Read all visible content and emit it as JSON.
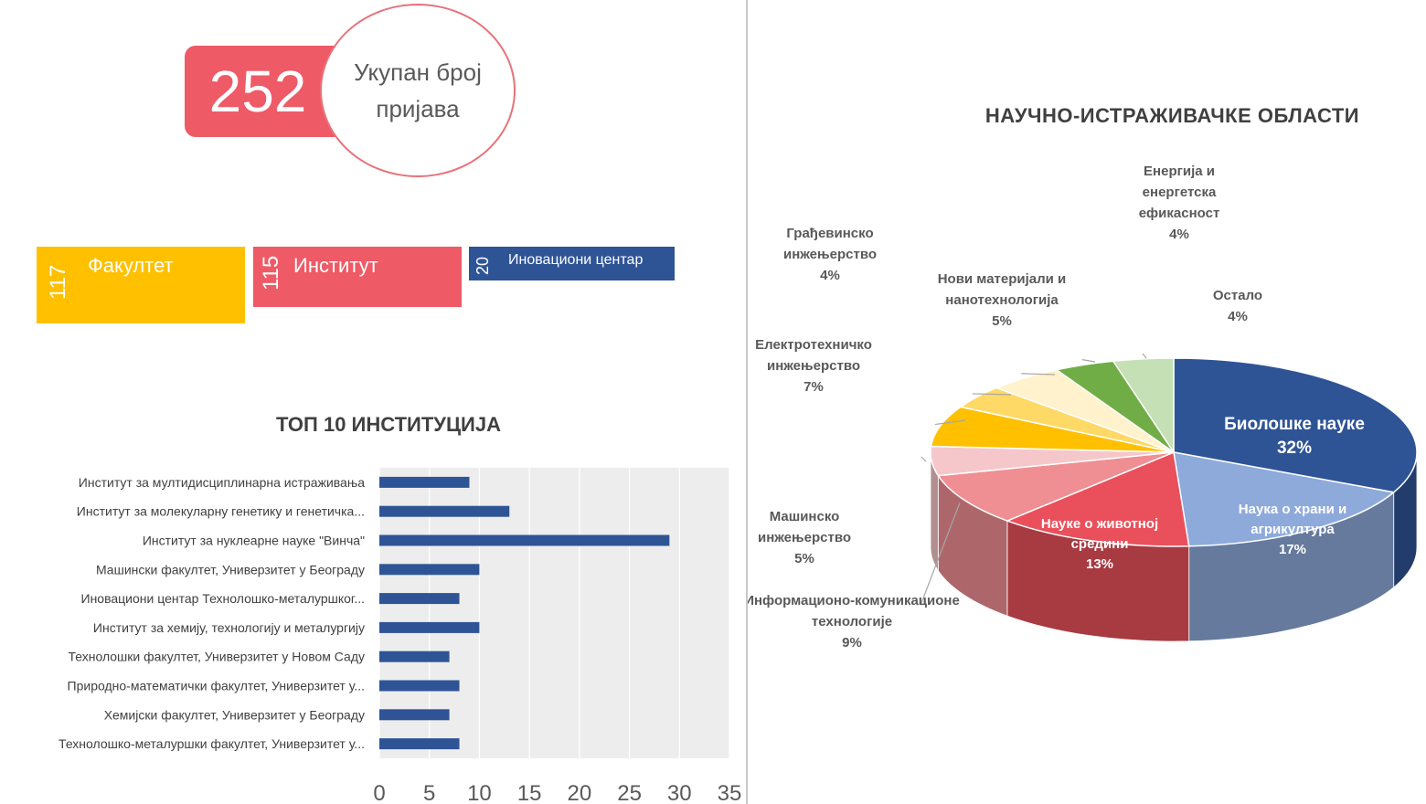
{
  "summary": {
    "total_value": "252",
    "total_label": "Укупан број пријава"
  },
  "categories": [
    {
      "key": "fak",
      "value": "117",
      "label": "Факултет",
      "color": "#ffc000"
    },
    {
      "key": "inst",
      "value": "115",
      "label": "Институт",
      "color": "#ee5a66"
    },
    {
      "key": "ino",
      "value": "20",
      "label": "Иновациони центар",
      "color": "#2f5496"
    }
  ],
  "chart_data": [
    {
      "type": "bar",
      "orientation": "horizontal",
      "title": "ТОП 10 ИНСТИТУЦИЈА",
      "categories": [
        "Институт за мултидисциплинарна истраживања",
        "Институт за молекуларну генетику и генетичка...",
        "Институт за нуклеарне науке \"Винча\"",
        "Машински факултет, Универзитет у Београду",
        "Иновациони центар Технолошко-металуршког...",
        "Институт за хемију, технологију и металургију",
        "Технолошки факултет, Универзитет у Новом Саду",
        "Природно-математички факултет, Универзитет у...",
        "Хемијски факултет, Универзитет у Београду",
        "Технолошко-металуршки факултет, Универзитет у..."
      ],
      "values": [
        9,
        13,
        29,
        10,
        8,
        10,
        7,
        8,
        7,
        8
      ],
      "xlim": [
        0,
        35
      ],
      "xticks": [
        0,
        5,
        10,
        15,
        20,
        25,
        30,
        35
      ],
      "grid": true,
      "bar_color": "#2f5496",
      "plot_background": "#ededed"
    },
    {
      "type": "pie",
      "style": "3d",
      "title": "НАУЧНО-ИСТРАЖИВАЧКЕ ОБЛАСТИ",
      "slices": [
        {
          "label": "Биолошке науке",
          "percent": "32%",
          "value": 32,
          "color": "#2f5496",
          "label_position": "inside"
        },
        {
          "label": "Наука о храни и агрикултура",
          "percent": "17%",
          "value": 17,
          "color": "#8eaadb",
          "label_position": "inside"
        },
        {
          "label": "Науке о животној средини",
          "percent": "13%",
          "value": 13,
          "color": "#e9505c",
          "label_position": "inside"
        },
        {
          "label": "Информационо-комуникационе технологије",
          "percent": "9%",
          "value": 9,
          "color": "#f08f93",
          "label_position": "outside"
        },
        {
          "label": "Машинско инжењерство",
          "percent": "5%",
          "value": 5,
          "color": "#f6c7ca",
          "label_position": "outside"
        },
        {
          "label": "Електротехничко инжењерство",
          "percent": "7%",
          "value": 7,
          "color": "#ffc000",
          "label_position": "outside"
        },
        {
          "label": "Грађевинско инжењерство",
          "percent": "4%",
          "value": 4,
          "color": "#ffd966",
          "label_position": "outside"
        },
        {
          "label": "Нови материјали и нанотехнологија",
          "percent": "5%",
          "value": 5,
          "color": "#fff2cc",
          "label_position": "outside"
        },
        {
          "label": "Енергија и енергетска ефикасност",
          "percent": "4%",
          "value": 4,
          "color": "#70ad47",
          "label_position": "outside"
        },
        {
          "label": "Остало",
          "percent": "4%",
          "value": 4,
          "color": "#c5e0b4",
          "label_position": "outside"
        }
      ]
    }
  ]
}
